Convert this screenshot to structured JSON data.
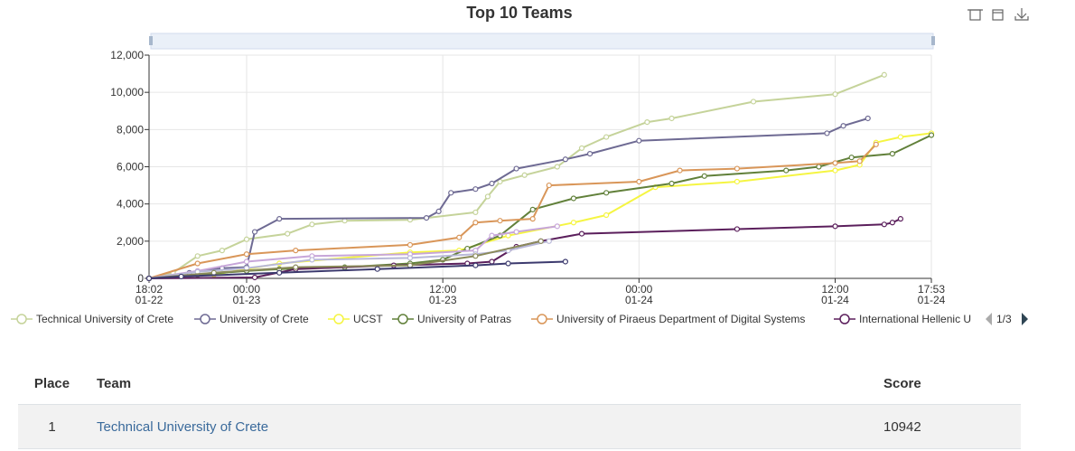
{
  "chart_data": {
    "type": "line",
    "title": "Top 10 Teams",
    "ylim": [
      0,
      12000
    ],
    "y_ticks": [
      "0",
      "2,000",
      "4,000",
      "6,000",
      "8,000",
      "10,000",
      "12,000"
    ],
    "xlim": [
      "01-22 18:02",
      "01-24 17:53"
    ],
    "x_ticks": [
      {
        "time": "18:02",
        "date": "01-22"
      },
      {
        "time": "00:00",
        "date": "01-23"
      },
      {
        "time": "12:00",
        "date": "01-23"
      },
      {
        "time": "00:00",
        "date": "01-24"
      },
      {
        "time": "12:00",
        "date": "01-24"
      },
      {
        "time": "17:53",
        "date": "01-24"
      }
    ],
    "grid": true,
    "legend_position": "bottom",
    "legend_page": "1/3",
    "series": [
      {
        "name": "Technical University of Crete",
        "color": "#c5d39a",
        "x": [
          "01-22 18:02",
          "01-22 19:30",
          "01-22 21:00",
          "01-22 22:30",
          "01-23 00:00",
          "01-23 02:30",
          "01-23 04:00",
          "01-23 06:00",
          "01-23 10:00",
          "01-23 14:00",
          "01-23 14:45",
          "01-23 15:30",
          "01-23 17:00",
          "01-23 19:00",
          "01-23 20:30",
          "01-23 22:00",
          "01-24 00:30",
          "01-24 02:00",
          "01-24 07:00",
          "01-24 12:00",
          "01-24 15:00"
        ],
        "y": [
          0,
          300,
          1200,
          1500,
          2100,
          2400,
          2900,
          3100,
          3150,
          3550,
          4400,
          5200,
          5550,
          6000,
          7000,
          7600,
          8400,
          8600,
          9500,
          9900,
          10942
        ]
      },
      {
        "name": "University of Crete",
        "color": "#6e6a93",
        "x": [
          "01-22 18:02",
          "01-22 20:30",
          "01-22 22:30",
          "01-23 00:00",
          "01-23 00:30",
          "01-23 02:00",
          "01-23 11:00",
          "01-23 11:45",
          "01-23 12:30",
          "01-23 14:00",
          "01-23 15:00",
          "01-23 16:30",
          "01-23 19:30",
          "01-23 21:00",
          "01-24 00:00",
          "01-24 11:30",
          "01-24 12:30",
          "01-24 14:00"
        ],
        "y": [
          0,
          300,
          550,
          600,
          2500,
          3200,
          3250,
          3600,
          4600,
          4800,
          5100,
          5900,
          6400,
          6700,
          7400,
          7800,
          8200,
          8600
        ]
      },
      {
        "name": "UCST",
        "color": "#f5f542",
        "x": [
          "01-22 18:02",
          "01-22 22:00",
          "01-23 02:00",
          "01-23 10:00",
          "01-23 13:00",
          "01-23 16:00",
          "01-23 20:00",
          "01-23 22:00",
          "01-24 01:00",
          "01-24 06:00",
          "01-24 12:00",
          "01-24 13:30",
          "01-24 14:30",
          "01-24 16:00",
          "01-24 17:53"
        ],
        "y": [
          0,
          200,
          800,
          1400,
          1500,
          2300,
          3000,
          3400,
          4900,
          5200,
          5800,
          6100,
          7300,
          7600,
          7800
        ]
      },
      {
        "name": "University of Patras",
        "color": "#61803a",
        "x": [
          "01-22 18:02",
          "01-22 21:00",
          "01-23 00:00",
          "01-23 02:00",
          "01-23 06:00",
          "01-23 10:00",
          "01-23 12:00",
          "01-23 13:30",
          "01-23 15:30",
          "01-23 17:30",
          "01-23 20:00",
          "01-23 22:00",
          "01-24 02:00",
          "01-24 04:00",
          "01-24 09:00",
          "01-24 11:00",
          "01-24 13:00",
          "01-24 15:30",
          "01-24 17:53"
        ],
        "y": [
          0,
          200,
          400,
          500,
          600,
          800,
          1000,
          1600,
          2300,
          3700,
          4300,
          4600,
          5100,
          5500,
          5800,
          6000,
          6500,
          6700,
          7700
        ]
      },
      {
        "name": "University of Piraeus Department of Digital Systems",
        "color": "#d99659",
        "x": [
          "01-22 18:02",
          "01-22 21:00",
          "01-23 00:00",
          "01-23 03:00",
          "01-23 10:00",
          "01-23 13:00",
          "01-23 14:00",
          "01-23 15:30",
          "01-23 17:30",
          "01-23 18:30",
          "01-24 00:00",
          "01-24 02:30",
          "01-24 06:00",
          "01-24 12:00",
          "01-24 13:30",
          "01-24 14:30"
        ],
        "y": [
          0,
          800,
          1300,
          1500,
          1800,
          2200,
          3000,
          3100,
          3200,
          5000,
          5200,
          5800,
          5900,
          6200,
          6300,
          7200
        ]
      },
      {
        "name": "International Hellenic University",
        "color": "#5b1f5c",
        "x": [
          "01-22 18:02",
          "01-23 00:30",
          "01-23 03:00",
          "01-23 09:00",
          "01-23 13:30",
          "01-23 15:00",
          "01-23 16:30",
          "01-23 18:00",
          "01-23 20:30",
          "01-24 06:00",
          "01-24 12:00",
          "01-24 15:00",
          "01-24 15:30",
          "01-24 16:00"
        ],
        "y": [
          0,
          50,
          500,
          700,
          800,
          900,
          1700,
          2000,
          2400,
          2650,
          2800,
          2900,
          3000,
          3200
        ]
      },
      {
        "name": "",
        "color": "#c7a6d9",
        "x": [
          "01-22 18:02",
          "01-22 21:00",
          "01-23 00:00",
          "01-23 04:00",
          "01-23 10:00",
          "01-23 14:00",
          "01-23 15:00",
          "01-23 16:30",
          "01-23 19:00"
        ],
        "y": [
          0,
          400,
          900,
          1200,
          1300,
          1500,
          2300,
          2500,
          2800
        ]
      },
      {
        "name": "",
        "color": "#b8b8d8",
        "x": [
          "01-22 18:02",
          "01-22 21:00",
          "01-23 00:00",
          "01-23 04:00",
          "01-23 10:00",
          "01-23 14:00",
          "01-23 16:00",
          "01-23 18:30"
        ],
        "y": [
          0,
          350,
          550,
          1000,
          1100,
          1300,
          1500,
          2000
        ]
      },
      {
        "name": "",
        "color": "#8a8a5a",
        "x": [
          "01-22 18:02",
          "01-22 22:00",
          "01-23 03:00",
          "01-23 10:00",
          "01-23 14:00",
          "01-23 18:00"
        ],
        "y": [
          0,
          300,
          600,
          700,
          1200,
          2000
        ]
      },
      {
        "name": "",
        "color": "#3c3a6e",
        "x": [
          "01-22 18:02",
          "01-22 20:00",
          "01-23 02:00",
          "01-23 08:00",
          "01-23 14:00",
          "01-23 16:00",
          "01-23 19:30"
        ],
        "y": [
          0,
          100,
          300,
          500,
          700,
          800,
          900
        ]
      }
    ]
  },
  "legend_items": [
    "Technical University of Crete",
    "University of Crete",
    "UCST",
    "University of Patras",
    "University of Piraeus Department of Digital Systems",
    "International Hellenic U"
  ],
  "table": {
    "headers": {
      "place": "Place",
      "team": "Team",
      "score": "Score"
    },
    "rows": [
      {
        "place": "1",
        "team": "Technical University of Crete",
        "score": "10942"
      }
    ]
  }
}
